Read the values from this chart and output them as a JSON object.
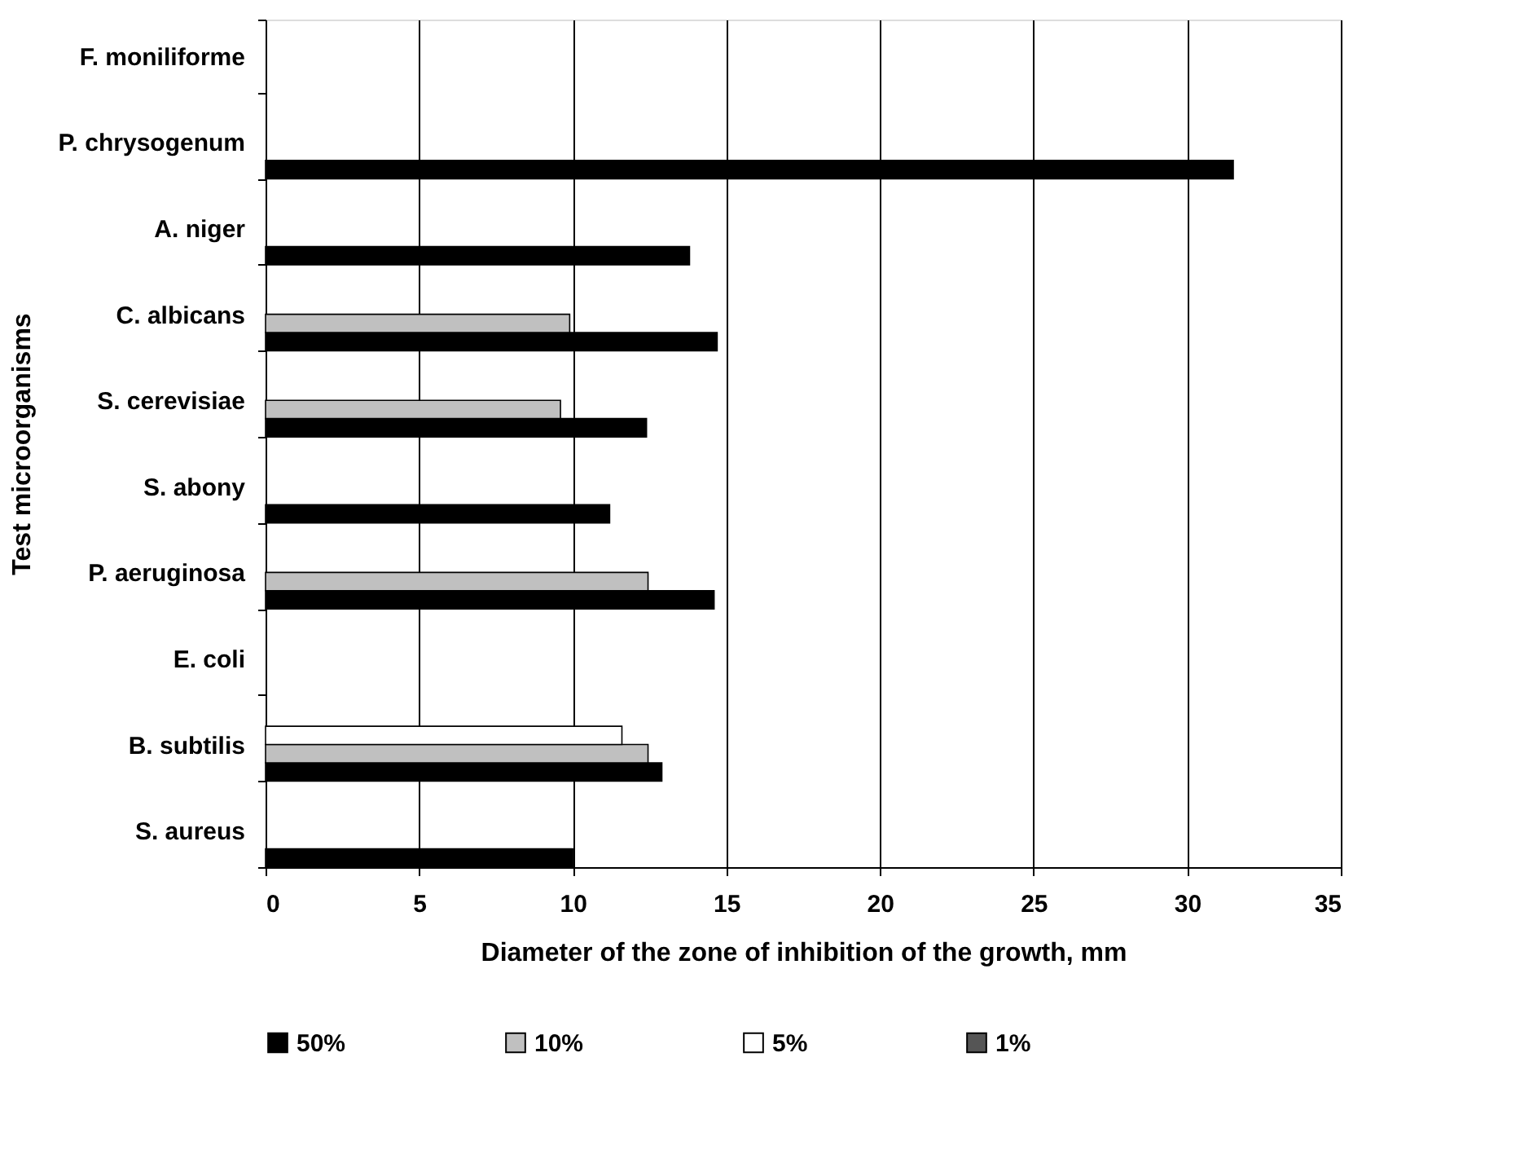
{
  "chart_data": {
    "type": "bar",
    "orientation": "horizontal",
    "xlabel": "Diameter of the zone of inhibition of the growth, mm",
    "ylabel": "Test  microorganisms",
    "categories": [
      "F. moniliforme",
      "P. chrysogenum",
      "A. niger",
      "C. albicans",
      "S. cerevisiae",
      "S. abony",
      "P. aeruginosa",
      "E. coli",
      "B. subtilis",
      "S. aureus"
    ],
    "series": [
      {
        "name": "50%",
        "color": "#000000",
        "values": [
          null,
          31.5,
          13.8,
          14.7,
          12.4,
          11.2,
          14.6,
          null,
          12.9,
          10.0
        ]
      },
      {
        "name": "10%",
        "color": "#c0c0c0",
        "values": [
          null,
          null,
          null,
          9.9,
          9.6,
          null,
          12.45,
          null,
          12.45,
          null
        ]
      },
      {
        "name": "5%",
        "color": "#ffffff",
        "values": [
          null,
          null,
          null,
          null,
          null,
          null,
          null,
          null,
          11.6,
          null
        ]
      },
      {
        "name": "1%",
        "color": "#555555",
        "values": [
          null,
          null,
          null,
          null,
          null,
          null,
          null,
          null,
          null,
          null
        ]
      }
    ],
    "xlim": [
      0,
      35
    ],
    "xticks": [
      0,
      5,
      10,
      15,
      20,
      25,
      30,
      35
    ],
    "grid": "x",
    "legend": "bottom"
  }
}
